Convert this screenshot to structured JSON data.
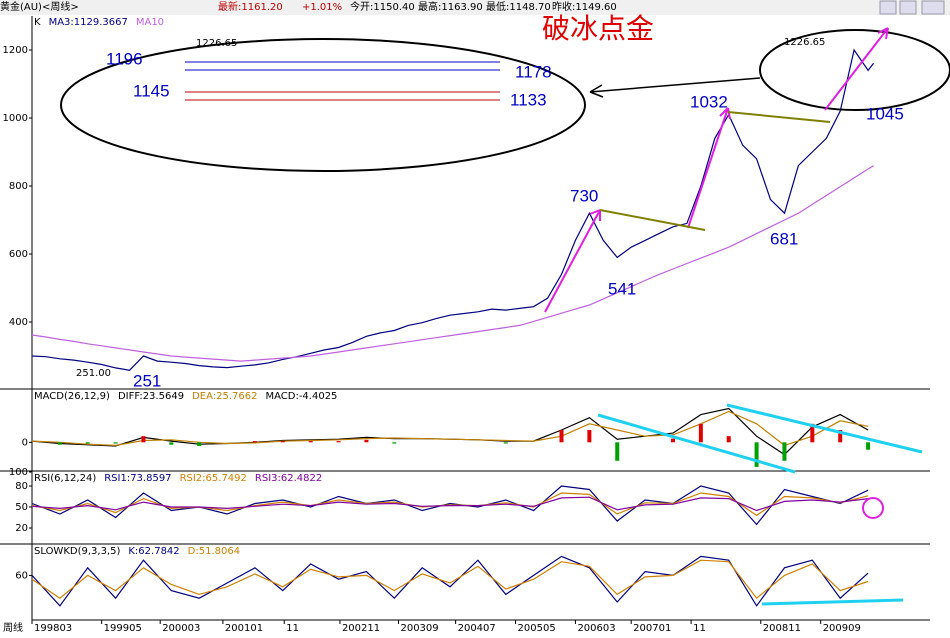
{
  "header": {
    "title": "黄金(AU)<周线>",
    "latest": "最新:1161.20",
    "change": "+1.01%",
    "open": "今开:1150.40",
    "high": "最高:1163.90",
    "low": "最低:1148.70",
    "prev": "昨收:1149.60",
    "period": "周线"
  },
  "chart_data": [
    {
      "type": "line",
      "title": "K",
      "xlim": [
        0,
        610
      ],
      "ylim": [
        206,
        1300
      ],
      "yticks": [
        400,
        600,
        800,
        1000,
        1200
      ],
      "xticks": [
        {
          "value": 0,
          "label": "199803"
        },
        {
          "value": 50,
          "label": "199905"
        },
        {
          "value": 92,
          "label": "200003"
        },
        {
          "value": 137,
          "label": "200101"
        },
        {
          "value": 181,
          "label": "11"
        },
        {
          "value": 221,
          "label": "200211"
        },
        {
          "value": 263,
          "label": "200309"
        },
        {
          "value": 304,
          "label": "200407"
        },
        {
          "value": 347,
          "label": "200505"
        },
        {
          "value": 390,
          "label": "200603"
        },
        {
          "value": 430,
          "label": "200701"
        },
        {
          "value": 473,
          "label": "11"
        },
        {
          "value": 523,
          "label": "200811"
        },
        {
          "value": 566,
          "label": "200909"
        }
      ],
      "x": [
        0,
        10,
        20,
        30,
        40,
        50,
        60,
        70,
        80,
        90,
        100,
        110,
        120,
        130,
        140,
        150,
        160,
        170,
        180,
        190,
        200,
        210,
        220,
        230,
        240,
        250,
        260,
        270,
        280,
        290,
        300,
        310,
        320,
        330,
        340,
        350,
        360,
        370,
        380,
        390,
        400,
        410,
        420,
        430,
        440,
        450,
        460,
        470,
        480,
        490,
        500,
        510,
        520,
        530,
        540,
        550,
        560,
        570,
        580,
        590,
        600,
        604
      ],
      "series": [
        {
          "name": "MA3:1129.3667",
          "color": "#000080",
          "values": [
            300,
            298,
            292,
            288,
            282,
            275,
            265,
            258,
            300,
            285,
            282,
            278,
            272,
            268,
            266,
            270,
            274,
            280,
            290,
            298,
            308,
            318,
            325,
            340,
            358,
            368,
            375,
            390,
            398,
            410,
            420,
            425,
            430,
            438,
            435,
            440,
            445,
            470,
            540,
            640,
            720,
            640,
            590,
            620,
            640,
            660,
            680,
            690,
            800,
            940,
            1010,
            920,
            880,
            760,
            720,
            860,
            900,
            940,
            1020,
            1200,
            1140,
            1161
          ]
        },
        {
          "name": "MA10",
          "color": "#c060e0",
          "values": [
            362,
            356,
            349,
            343,
            336,
            330,
            324,
            318,
            312,
            306,
            300,
            297,
            294,
            291,
            288,
            285,
            288,
            291,
            294,
            297,
            300,
            306,
            312,
            318,
            324,
            330,
            336,
            342,
            348,
            354,
            360,
            366,
            372,
            378,
            384,
            390,
            402,
            414,
            426,
            438,
            450,
            468,
            486,
            504,
            522,
            540,
            556,
            572,
            588,
            604,
            620,
            640,
            660,
            680,
            700,
            720,
            746,
            772,
            798,
            824,
            850,
            860
          ]
        }
      ],
      "annotations": [
        "破冰点金",
        "1196",
        "1178",
        "1145",
        "1133",
        "1226.65",
        "1226.65",
        "1032",
        "1045",
        "730",
        "541",
        "681",
        "251.00",
        "251"
      ]
    },
    {
      "type": "line",
      "title": "MACD(26,12,9)",
      "xlim": [
        0,
        610
      ],
      "ylim": [
        -45,
        85
      ],
      "yticks": [
        0
      ],
      "x": [
        0,
        20,
        40,
        60,
        80,
        100,
        120,
        140,
        160,
        180,
        200,
        220,
        240,
        260,
        280,
        300,
        320,
        340,
        360,
        380,
        400,
        420,
        440,
        460,
        480,
        500,
        520,
        540,
        560,
        580,
        600
      ],
      "series": [
        {
          "name": "DIFF:23.5649",
          "color": "#000000",
          "values": [
            2,
            -2,
            -4,
            -6,
            8,
            2,
            -3,
            -2,
            0,
            3,
            4,
            5,
            8,
            6,
            6,
            5,
            4,
            2,
            2,
            20,
            40,
            5,
            10,
            15,
            45,
            55,
            10,
            -20,
            25,
            45,
            20
          ]
        },
        {
          "name": "DEA:25.7662",
          "color": "#c08000",
          "values": [
            2,
            0,
            -3,
            -5,
            3,
            4,
            0,
            -2,
            -1,
            2,
            3,
            4,
            6,
            7,
            6,
            5,
            4,
            3,
            2,
            10,
            30,
            20,
            10,
            12,
            30,
            50,
            30,
            -5,
            10,
            35,
            26
          ]
        },
        {
          "name": "MACD:-4.4025",
          "type": "bar",
          "colors": [
            "#e00000",
            "#00a000"
          ],
          "values": [
            0,
            -4,
            -2,
            -2,
            10,
            -4,
            -6,
            0,
            2,
            2,
            2,
            2,
            4,
            -2,
            0,
            0,
            0,
            -2,
            0,
            20,
            20,
            -30,
            0,
            6,
            30,
            10,
            -40,
            -30,
            30,
            20,
            -12
          ]
        }
      ]
    },
    {
      "type": "line",
      "title": "RSI(6,12,24)",
      "xlim": [
        0,
        610
      ],
      "ylim": [
        0,
        100
      ],
      "yticks": [
        20,
        50,
        80,
        100
      ],
      "x": [
        0,
        20,
        40,
        60,
        80,
        100,
        120,
        140,
        160,
        180,
        200,
        220,
        240,
        260,
        280,
        300,
        320,
        340,
        360,
        380,
        400,
        420,
        440,
        460,
        480,
        500,
        520,
        540,
        560,
        580,
        600
      ],
      "series": [
        {
          "name": "RSI1:73.8597",
          "color": "#000080",
          "values": [
            55,
            40,
            60,
            35,
            70,
            45,
            50,
            40,
            55,
            60,
            50,
            65,
            55,
            60,
            45,
            55,
            50,
            60,
            45,
            80,
            75,
            30,
            60,
            55,
            80,
            70,
            25,
            75,
            65,
            55,
            74
          ]
        },
        {
          "name": "RSI2:65.7492",
          "color": "#d08000",
          "values": [
            52,
            45,
            55,
            42,
            62,
            48,
            50,
            45,
            52,
            57,
            52,
            60,
            55,
            57,
            50,
            53,
            52,
            56,
            50,
            70,
            68,
            40,
            56,
            55,
            70,
            65,
            38,
            65,
            63,
            56,
            66
          ]
        },
        {
          "name": "RSI3:62.4822",
          "color": "#8000a0",
          "values": [
            51,
            48,
            52,
            46,
            57,
            50,
            50,
            48,
            51,
            54,
            52,
            57,
            54,
            55,
            51,
            52,
            52,
            54,
            51,
            63,
            64,
            46,
            53,
            54,
            63,
            62,
            45,
            58,
            60,
            57,
            62
          ]
        }
      ]
    },
    {
      "type": "line",
      "title": "SLOWKD(9,3,3,5)",
      "xlim": [
        0,
        610
      ],
      "ylim": [
        4,
        100
      ],
      "yticks": [
        60
      ],
      "x": [
        0,
        20,
        40,
        60,
        80,
        100,
        120,
        140,
        160,
        180,
        200,
        220,
        240,
        260,
        280,
        300,
        320,
        340,
        360,
        380,
        400,
        420,
        440,
        460,
        480,
        500,
        520,
        540,
        560,
        580,
        600
      ],
      "series": [
        {
          "name": "K:62.7842",
          "color": "#000080",
          "values": [
            60,
            20,
            70,
            30,
            80,
            40,
            30,
            50,
            70,
            40,
            75,
            55,
            65,
            30,
            70,
            45,
            80,
            35,
            60,
            85,
            70,
            25,
            65,
            60,
            85,
            80,
            20,
            70,
            80,
            30,
            63
          ]
        },
        {
          "name": "D:51.8064",
          "color": "#d08000",
          "values": [
            55,
            30,
            60,
            40,
            70,
            48,
            35,
            45,
            62,
            45,
            68,
            58,
            60,
            40,
            62,
            50,
            72,
            42,
            55,
            78,
            72,
            35,
            58,
            60,
            80,
            78,
            30,
            60,
            75,
            40,
            52
          ]
        }
      ]
    }
  ]
}
